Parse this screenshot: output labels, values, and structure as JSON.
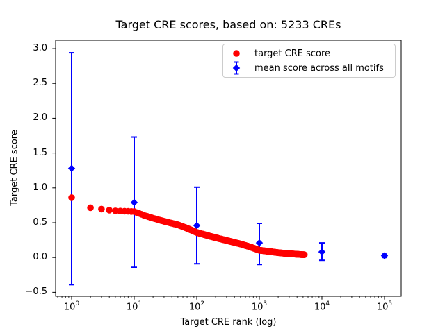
{
  "chart_data": {
    "type": "scatter",
    "title": "Target CRE scores, based on: 5233 CREs",
    "xlabel": "Target CRE rank (log)",
    "ylabel": "Target CRE score",
    "x_scale": "log",
    "xlim": [
      0.5551,
      184900
    ],
    "ylim": [
      -0.556,
      3.12
    ],
    "x_tick_base": "10",
    "x_tick_exponents": [
      0,
      1,
      2,
      3,
      4,
      5
    ],
    "y_ticks": [
      {
        "value": 3.0,
        "label": "3.0"
      },
      {
        "value": 2.5,
        "label": "2.5"
      },
      {
        "value": 2.0,
        "label": "2.0"
      },
      {
        "value": 1.5,
        "label": "1.5"
      },
      {
        "value": 1.0,
        "label": "1.0"
      },
      {
        "value": 0.5,
        "label": "0.5"
      },
      {
        "value": 0.0,
        "label": "0.0"
      },
      {
        "value": -0.5,
        "label": "−0.5"
      }
    ],
    "grid": false,
    "legend_position": "upper right",
    "series": [
      {
        "name": "target CRE score",
        "color": "#ff0000",
        "marker": "circle",
        "n_points_depicted": 5233,
        "rank_range": [
          1,
          5233
        ],
        "sampled_anchors_rank_score": [
          [
            1,
            0.86
          ],
          [
            2,
            0.715
          ],
          [
            3,
            0.695
          ],
          [
            4,
            0.68
          ],
          [
            5,
            0.67
          ],
          [
            7,
            0.665
          ],
          [
            10,
            0.66
          ],
          [
            15,
            0.6
          ],
          [
            20,
            0.565
          ],
          [
            30,
            0.52
          ],
          [
            50,
            0.47
          ],
          [
            70,
            0.42
          ],
          [
            100,
            0.36
          ],
          [
            150,
            0.315
          ],
          [
            200,
            0.285
          ],
          [
            300,
            0.245
          ],
          [
            500,
            0.195
          ],
          [
            700,
            0.155
          ],
          [
            1000,
            0.105
          ],
          [
            1500,
            0.085
          ],
          [
            2000,
            0.07
          ],
          [
            3000,
            0.055
          ],
          [
            4000,
            0.047
          ],
          [
            5233,
            0.04
          ]
        ]
      },
      {
        "name": "mean score across all motifs",
        "color": "#0000ff",
        "marker": "diamond",
        "error_bars": true,
        "points": [
          {
            "rank": 1,
            "mean": 1.28,
            "upper": 2.94,
            "lower": -0.39
          },
          {
            "rank": 10,
            "mean": 0.79,
            "upper": 1.73,
            "lower": -0.14
          },
          {
            "rank": 100,
            "mean": 0.46,
            "upper": 1.01,
            "lower": -0.09
          },
          {
            "rank": 1000,
            "mean": 0.21,
            "upper": 0.49,
            "lower": -0.1
          },
          {
            "rank": 10000,
            "mean": 0.08,
            "upper": 0.21,
            "lower": -0.04
          },
          {
            "rank": 100000,
            "mean": 0.025,
            "upper": 0.05,
            "lower": 0.0
          }
        ]
      }
    ],
    "axis_color": "#000000",
    "background_color": "#ffffff",
    "legend_border_color": "#cccccc"
  }
}
